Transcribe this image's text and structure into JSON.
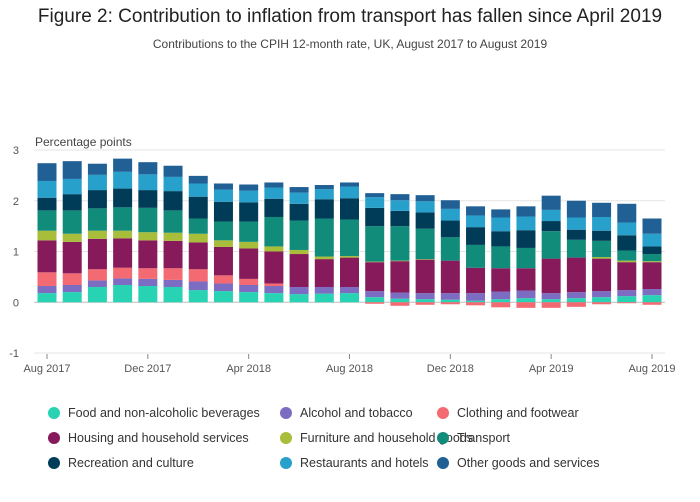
{
  "title": "Figure 2: Contribution to inflation from transport has fallen since April 2019",
  "subtitle": "Contributions to the CPIH 12-month rate, UK, August 2017 to August 2019",
  "chart_data": {
    "type": "bar",
    "stacked": true,
    "ylabel": "Percentage points",
    "ylim": [
      -1,
      3
    ],
    "yticks": [
      -1,
      0,
      1,
      2,
      3
    ],
    "grid": true,
    "legend_position": "bottom",
    "categories": [
      "Aug 2017",
      "Sep 2017",
      "Oct 2017",
      "Nov 2017",
      "Dec 2017",
      "Jan 2018",
      "Feb 2018",
      "Mar 2018",
      "Apr 2018",
      "May 2018",
      "Jun 2018",
      "Jul 2018",
      "Aug 2018",
      "Sep 2018",
      "Oct 2018",
      "Nov 2018",
      "Dec 2018",
      "Jan 2019",
      "Feb 2019",
      "Mar 2019",
      "Apr 2019",
      "May 2019",
      "Jun 2019",
      "Jul 2019",
      "Aug 2019"
    ],
    "xtick_labels": [
      "Aug 2017",
      "",
      "",
      "",
      "Dec 2017",
      "",
      "",
      "",
      "Apr 2018",
      "",
      "",
      "",
      "Aug 2018",
      "",
      "",
      "",
      "Dec 2018",
      "",
      "",
      "",
      "Apr 2019",
      "",
      "",
      "",
      "Aug 2019"
    ],
    "series": [
      {
        "name": "Food and non-alcoholic beverages",
        "color": "#27d3b2",
        "values": [
          0.18,
          0.2,
          0.3,
          0.34,
          0.32,
          0.3,
          0.24,
          0.22,
          0.2,
          0.18,
          0.16,
          0.17,
          0.18,
          0.1,
          0.07,
          0.06,
          0.05,
          0.03,
          0.06,
          0.08,
          0.06,
          0.08,
          0.1,
          0.12,
          0.14
        ]
      },
      {
        "name": "Alcohol and tobacco",
        "color": "#7d6dc2",
        "values": [
          0.14,
          0.14,
          0.13,
          0.13,
          0.14,
          0.14,
          0.17,
          0.15,
          0.14,
          0.14,
          0.14,
          0.13,
          0.12,
          0.12,
          0.12,
          0.12,
          0.13,
          0.15,
          0.15,
          0.15,
          0.12,
          0.12,
          0.12,
          0.12,
          0.12
        ]
      },
      {
        "name": "Clothing and footwear",
        "color": "#f36a72",
        "values": [
          0.27,
          0.23,
          0.22,
          0.21,
          0.21,
          0.23,
          0.24,
          0.16,
          0.12,
          0.05,
          0.0,
          0.0,
          0.0,
          -0.03,
          -0.07,
          -0.05,
          -0.04,
          -0.06,
          -0.1,
          -0.11,
          -0.11,
          -0.09,
          -0.04,
          -0.02,
          -0.05
        ]
      },
      {
        "name": "Housing and household services",
        "color": "#871a5b",
        "values": [
          0.63,
          0.62,
          0.6,
          0.58,
          0.55,
          0.54,
          0.53,
          0.56,
          0.6,
          0.63,
          0.65,
          0.55,
          0.58,
          0.57,
          0.62,
          0.66,
          0.64,
          0.5,
          0.46,
          0.44,
          0.68,
          0.68,
          0.64,
          0.55,
          0.53
        ]
      },
      {
        "name": "Furniture and household goods",
        "color": "#a8bd3a",
        "values": [
          0.19,
          0.16,
          0.16,
          0.15,
          0.16,
          0.16,
          0.17,
          0.13,
          0.13,
          0.1,
          0.08,
          0.05,
          0.03,
          0.01,
          0.01,
          0.01,
          0.0,
          0.0,
          0.0,
          0.0,
          0.0,
          0.0,
          0.03,
          0.03,
          0.02
        ]
      },
      {
        "name": "Transport",
        "color": "#118c7b",
        "values": [
          0.4,
          0.46,
          0.44,
          0.46,
          0.48,
          0.44,
          0.3,
          0.37,
          0.4,
          0.58,
          0.58,
          0.75,
          0.72,
          0.7,
          0.68,
          0.6,
          0.46,
          0.45,
          0.43,
          0.4,
          0.54,
          0.35,
          0.32,
          0.2,
          0.14
        ]
      },
      {
        "name": "Recreation and culture",
        "color": "#003c57",
        "values": [
          0.25,
          0.32,
          0.36,
          0.37,
          0.35,
          0.38,
          0.43,
          0.39,
          0.38,
          0.36,
          0.33,
          0.38,
          0.42,
          0.36,
          0.3,
          0.32,
          0.33,
          0.35,
          0.3,
          0.35,
          0.2,
          0.2,
          0.2,
          0.3,
          0.15
        ]
      },
      {
        "name": "Restaurants and hotels",
        "color": "#27a0cc",
        "values": [
          0.33,
          0.3,
          0.3,
          0.33,
          0.31,
          0.28,
          0.26,
          0.24,
          0.23,
          0.22,
          0.22,
          0.2,
          0.23,
          0.21,
          0.21,
          0.22,
          0.23,
          0.23,
          0.27,
          0.27,
          0.22,
          0.24,
          0.27,
          0.25,
          0.25
        ]
      },
      {
        "name": "Other goods and services",
        "color": "#206095",
        "values": [
          0.35,
          0.35,
          0.22,
          0.26,
          0.24,
          0.22,
          0.15,
          0.12,
          0.12,
          0.1,
          0.11,
          0.08,
          0.08,
          0.08,
          0.12,
          0.12,
          0.17,
          0.18,
          0.16,
          0.2,
          0.28,
          0.33,
          0.28,
          0.37,
          0.3
        ]
      }
    ]
  }
}
